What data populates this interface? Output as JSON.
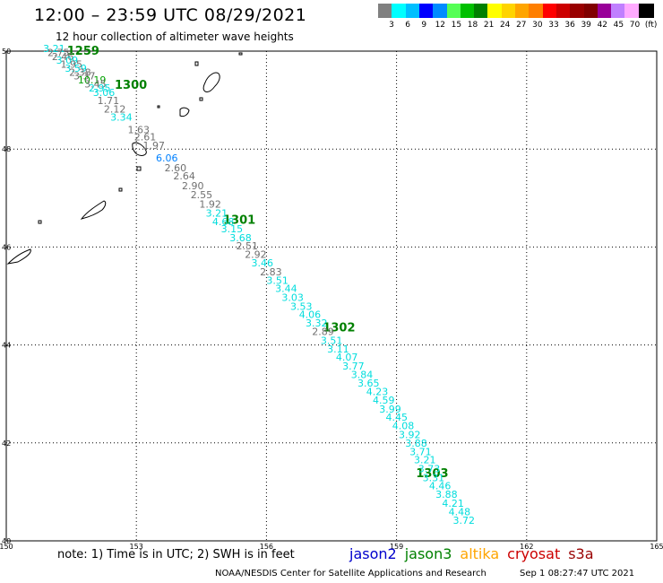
{
  "title": "12:00 – 23:59 UTC 08/29/2021",
  "subtitle": "12 hour collection of altimeter wave heights",
  "scale": {
    "colors": [
      "#808080",
      "#00ffff",
      "#00bfff",
      "#0000ff",
      "#008bff",
      "#55ff55",
      "#00c000",
      "#008000",
      "#ffff00",
      "#ffd400",
      "#ffa500",
      "#ff7f00",
      "#ff0000",
      "#cc0000",
      "#990000",
      "#800000",
      "#990099",
      "#c080ff",
      "#ffaaff",
      "#000000"
    ],
    "labels": [
      "3",
      "6",
      "9",
      "12",
      "15",
      "18",
      "21",
      "24",
      "27",
      "30",
      "33",
      "36",
      "39",
      "42",
      "45",
      "70"
    ],
    "unit": "(ft)"
  },
  "map_view": {
    "lon_min": 150,
    "lon_max": 165,
    "lat_min": 40,
    "lat_max": 50
  },
  "axes": {
    "lon_ticks": [
      "150",
      "153",
      "156",
      "159",
      "162",
      "165"
    ],
    "lat_ticks": [
      "50",
      "48",
      "46",
      "44",
      "42",
      "40"
    ]
  },
  "time_labels": [
    {
      "text": "1259",
      "lon": 151.4,
      "lat": 49.93
    },
    {
      "text": "1300",
      "lon": 152.5,
      "lat": 49.23
    },
    {
      "text": "1301",
      "lon": 155.0,
      "lat": 46.47
    },
    {
      "text": "1302",
      "lon": 157.3,
      "lat": 44.28
    },
    {
      "text": "1303",
      "lon": 159.45,
      "lat": 41.3
    }
  ],
  "heights": [
    {
      "v": "3.21",
      "lon": 150.85,
      "lat": 49.98,
      "c": "#00dddd"
    },
    {
      "v": "2.75",
      "lon": 150.95,
      "lat": 49.9,
      "c": "#707070"
    },
    {
      "v": "2.46",
      "lon": 151.05,
      "lat": 49.82,
      "c": "#707070"
    },
    {
      "v": "3.09",
      "lon": 151.15,
      "lat": 49.74,
      "c": "#00dddd"
    },
    {
      "v": "1.95",
      "lon": 151.25,
      "lat": 49.66,
      "c": "#707070"
    },
    {
      "v": "3.59",
      "lon": 151.35,
      "lat": 49.58,
      "c": "#00dddd"
    },
    {
      "v": "2.38",
      "lon": 151.45,
      "lat": 49.5,
      "c": "#707070"
    },
    {
      "v": "3.37",
      "lon": 151.55,
      "lat": 49.42,
      "c": "#707070"
    },
    {
      "v": "10.19",
      "lon": 151.65,
      "lat": 49.34,
      "c": "#00a000"
    },
    {
      "v": "3.45",
      "lon": 151.8,
      "lat": 49.26,
      "c": "#707070"
    },
    {
      "v": "2.95",
      "lon": 151.9,
      "lat": 49.18,
      "c": "#00dddd"
    },
    {
      "v": "3.06",
      "lon": 152.0,
      "lat": 49.08,
      "c": "#00dddd"
    },
    {
      "v": "1.71",
      "lon": 152.1,
      "lat": 48.92,
      "c": "#707070"
    },
    {
      "v": "2.12",
      "lon": 152.25,
      "lat": 48.75,
      "c": "#707070"
    },
    {
      "v": "3.34",
      "lon": 152.4,
      "lat": 48.58,
      "c": "#00dddd"
    },
    {
      "v": "1.63",
      "lon": 152.8,
      "lat": 48.32,
      "c": "#707070"
    },
    {
      "v": "2.61",
      "lon": 152.95,
      "lat": 48.18,
      "c": "#707070"
    },
    {
      "v": "1.97",
      "lon": 153.15,
      "lat": 48.0,
      "c": "#707070"
    },
    {
      "v": "6.06",
      "lon": 153.45,
      "lat": 47.75,
      "c": "#0080ff"
    },
    {
      "v": "2.60",
      "lon": 153.65,
      "lat": 47.55,
      "c": "#707070"
    },
    {
      "v": "2.64",
      "lon": 153.85,
      "lat": 47.38,
      "c": "#707070"
    },
    {
      "v": "2.90",
      "lon": 154.05,
      "lat": 47.18,
      "c": "#707070"
    },
    {
      "v": "2.55",
      "lon": 154.25,
      "lat": 47.0,
      "c": "#707070"
    },
    {
      "v": "1.92",
      "lon": 154.45,
      "lat": 46.8,
      "c": "#707070"
    },
    {
      "v": "3.21",
      "lon": 154.6,
      "lat": 46.62,
      "c": "#00dddd"
    },
    {
      "v": "4.68",
      "lon": 154.75,
      "lat": 46.45,
      "c": "#00dddd"
    },
    {
      "v": "3.15",
      "lon": 154.95,
      "lat": 46.3,
      "c": "#00dddd"
    },
    {
      "v": "3.68",
      "lon": 155.15,
      "lat": 46.12,
      "c": "#00dddd"
    },
    {
      "v": "2.51",
      "lon": 155.3,
      "lat": 45.95,
      "c": "#707070"
    },
    {
      "v": "2.92",
      "lon": 155.5,
      "lat": 45.78,
      "c": "#707070"
    },
    {
      "v": "3.46",
      "lon": 155.65,
      "lat": 45.6,
      "c": "#00dddd"
    },
    {
      "v": "2.83",
      "lon": 155.85,
      "lat": 45.42,
      "c": "#707070"
    },
    {
      "v": "3.51",
      "lon": 156.0,
      "lat": 45.25,
      "c": "#00dddd"
    },
    {
      "v": "3.44",
      "lon": 156.2,
      "lat": 45.08,
      "c": "#00dddd"
    },
    {
      "v": "3.03",
      "lon": 156.35,
      "lat": 44.9,
      "c": "#00dddd"
    },
    {
      "v": "3.53",
      "lon": 156.55,
      "lat": 44.72,
      "c": "#00dddd"
    },
    {
      "v": "4.06",
      "lon": 156.75,
      "lat": 44.55,
      "c": "#00dddd"
    },
    {
      "v": "3.32",
      "lon": 156.9,
      "lat": 44.38,
      "c": "#00dddd"
    },
    {
      "v": "2.89",
      "lon": 157.05,
      "lat": 44.2,
      "c": "#707070"
    },
    {
      "v": "3.51",
      "lon": 157.25,
      "lat": 44.02,
      "c": "#00dddd"
    },
    {
      "v": "3.11",
      "lon": 157.4,
      "lat": 43.85,
      "c": "#00dddd"
    },
    {
      "v": "4.07",
      "lon": 157.6,
      "lat": 43.68,
      "c": "#00dddd"
    },
    {
      "v": "3.77",
      "lon": 157.75,
      "lat": 43.5,
      "c": "#00dddd"
    },
    {
      "v": "3.84",
      "lon": 157.95,
      "lat": 43.32,
      "c": "#00dddd"
    },
    {
      "v": "3.65",
      "lon": 158.1,
      "lat": 43.15,
      "c": "#00dddd"
    },
    {
      "v": "4.23",
      "lon": 158.3,
      "lat": 42.98,
      "c": "#00dddd"
    },
    {
      "v": "4.59",
      "lon": 158.45,
      "lat": 42.8,
      "c": "#00dddd"
    },
    {
      "v": "3.99",
      "lon": 158.6,
      "lat": 42.62,
      "c": "#00dddd"
    },
    {
      "v": "4.45",
      "lon": 158.75,
      "lat": 42.45,
      "c": "#00dddd"
    },
    {
      "v": "4.08",
      "lon": 158.9,
      "lat": 42.28,
      "c": "#00dddd"
    },
    {
      "v": "3.92",
      "lon": 159.05,
      "lat": 42.1,
      "c": "#00dddd"
    },
    {
      "v": "3.88",
      "lon": 159.2,
      "lat": 41.92,
      "c": "#00dddd"
    },
    {
      "v": "3.71",
      "lon": 159.3,
      "lat": 41.75,
      "c": "#00dddd"
    },
    {
      "v": "3.21",
      "lon": 159.4,
      "lat": 41.58,
      "c": "#00dddd"
    },
    {
      "v": "3.73",
      "lon": 159.5,
      "lat": 41.4,
      "c": "#00dddd"
    },
    {
      "v": "3.31",
      "lon": 159.6,
      "lat": 41.22,
      "c": "#00dddd"
    },
    {
      "v": "4.46",
      "lon": 159.75,
      "lat": 41.05,
      "c": "#00dddd"
    },
    {
      "v": "3.88",
      "lon": 159.9,
      "lat": 40.88,
      "c": "#00dddd"
    },
    {
      "v": "4.21",
      "lon": 160.05,
      "lat": 40.7,
      "c": "#00dddd"
    },
    {
      "v": "4.48",
      "lon": 160.2,
      "lat": 40.52,
      "c": "#00dddd"
    },
    {
      "v": "3.72",
      "lon": 160.3,
      "lat": 40.35,
      "c": "#00dddd"
    }
  ],
  "note": "note:  1) Time is in UTC;  2) SWH is in feet",
  "legend": [
    {
      "name": "jason2",
      "color": "#0000cc"
    },
    {
      "name": "jason3",
      "color": "#008000"
    },
    {
      "name": "altika",
      "color": "#ffa500"
    },
    {
      "name": "cryosat",
      "color": "#cc0000"
    },
    {
      "name": "s3a",
      "color": "#990000"
    }
  ],
  "credit": "NOAA/NESDIS Center for Satellite Applications and Research",
  "timestamp": "Sep  1 08:27:47 UTC 2021"
}
